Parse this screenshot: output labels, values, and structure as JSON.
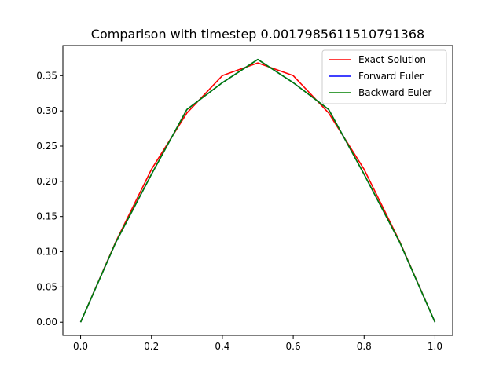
{
  "chart_data": {
    "type": "line",
    "title": "Comparison with timestep 0.0017985611510791368",
    "xlabel": "",
    "ylabel": "",
    "xlim": [
      -0.05,
      1.05
    ],
    "ylim": [
      -0.0187,
      0.3927
    ],
    "x_ticks": [
      "0.0",
      "0.2",
      "0.4",
      "0.6",
      "0.8",
      "1.0"
    ],
    "y_ticks": [
      "0.00",
      "0.05",
      "0.10",
      "0.15",
      "0.20",
      "0.25",
      "0.30",
      "0.35"
    ],
    "grid": false,
    "legend_position": "top-right",
    "x": [
      0.0,
      0.1,
      0.2,
      0.3,
      0.4,
      0.5,
      0.6,
      0.7,
      0.8,
      0.9,
      1.0
    ],
    "series": [
      {
        "name": "Exact Solution",
        "color": "#ff0000",
        "values": [
          0.0,
          0.115,
          0.217,
          0.297,
          0.35,
          0.368,
          0.35,
          0.297,
          0.217,
          0.115,
          0.0
        ]
      },
      {
        "name": "Forward Euler",
        "color": "#0000ff",
        "values": [
          0.0,
          0.114,
          0.21,
          0.302,
          0.34,
          0.373,
          0.34,
          0.302,
          0.21,
          0.114,
          0.0
        ]
      },
      {
        "name": "Backward Euler",
        "color": "#008000",
        "values": [
          0.0,
          0.114,
          0.21,
          0.302,
          0.34,
          0.373,
          0.34,
          0.302,
          0.21,
          0.114,
          0.0
        ]
      }
    ]
  }
}
